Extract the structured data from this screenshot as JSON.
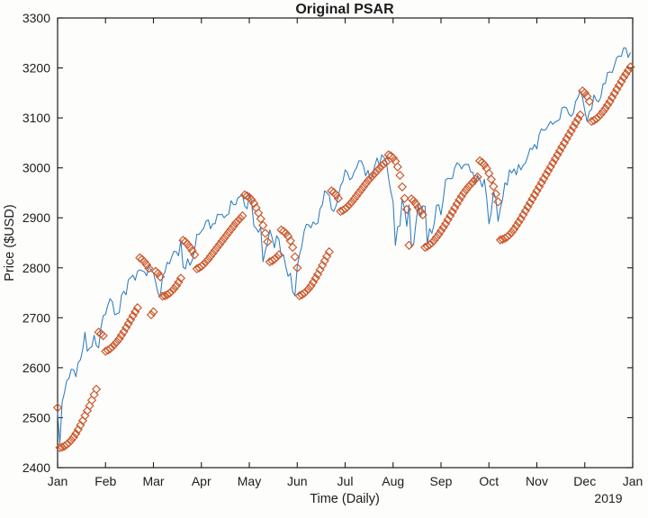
{
  "chart_data": {
    "type": "line+scatter",
    "title": "Original PSAR",
    "xlabel": "Time (Daily)",
    "ylabel": "Price ($USD)",
    "x_ticklabels": [
      "Jan",
      "Feb",
      "Mar",
      "Apr",
      "May",
      "Jun",
      "Jul",
      "Aug",
      "Sep",
      "Oct",
      "Nov",
      "Dec",
      "Jan"
    ],
    "x_secondary_label": "2019",
    "y_ticks": [
      2400,
      2500,
      2600,
      2700,
      2800,
      2900,
      3000,
      3100,
      3200,
      3300
    ],
    "ylim": [
      2400,
      3300
    ],
    "grid": false,
    "legend": "none",
    "axis_color": "#1c1c1c",
    "background": "#fdfdfc",
    "series": [
      {
        "name": "price",
        "type": "line",
        "color": "#2e7dbe",
        "values": [
          2510,
          2448,
          2532,
          2550,
          2574,
          2579,
          2597,
          2596,
          2582,
          2610,
          2616,
          2636,
          2671,
          2633,
          2639,
          2642,
          2665,
          2644,
          2640,
          2681,
          2704,
          2707,
          2725,
          2738,
          2732,
          2706,
          2708,
          2710,
          2745,
          2753,
          2746,
          2776,
          2780,
          2785,
          2775,
          2793,
          2796,
          2794,
          2792,
          2784,
          2804,
          2793,
          2790,
          2771,
          2749,
          2743,
          2783,
          2791,
          2811,
          2808,
          2822,
          2833,
          2832,
          2824,
          2855,
          2801,
          2798,
          2818,
          2805,
          2815,
          2834,
          2867,
          2867,
          2873,
          2879,
          2893,
          2896,
          2878,
          2888,
          2888,
          2907,
          2906,
          2907,
          2900,
          2905,
          2908,
          2934,
          2927,
          2926,
          2940,
          2943,
          2946,
          2924,
          2918,
          2946,
          2932,
          2884,
          2879,
          2871,
          2881,
          2812,
          2834,
          2851,
          2876,
          2860,
          2840,
          2864,
          2856,
          2822,
          2826,
          2802,
          2783,
          2789,
          2752,
          2744,
          2803,
          2826,
          2843,
          2873,
          2887,
          2886,
          2880,
          2892,
          2887,
          2889,
          2918,
          2926,
          2954,
          2950,
          2945,
          2917,
          2913,
          2924,
          2942,
          2964,
          2973,
          2996,
          2990,
          2976,
          2980,
          2993,
          3000,
          3014,
          3014,
          3004,
          2984,
          2995,
          2977,
          2985,
          3005,
          3020,
          3004,
          3026,
          3021,
          3013,
          2980,
          2953,
          2932,
          2845,
          2882,
          2884,
          2938,
          2919,
          2883,
          2926,
          2841,
          2847,
          2889,
          2924,
          2901,
          2924,
          2923,
          2847,
          2878,
          2869,
          2888,
          2925,
          2926,
          2906,
          2938,
          2976,
          2979,
          2978,
          2979,
          3000,
          3010,
          3007,
          2998,
          3006,
          3007,
          3007,
          2992,
          2991,
          2967,
          2985,
          2977,
          2962,
          2977,
          2940,
          2888,
          2911,
          2952,
          2939,
          2893,
          2919,
          2938,
          2970,
          2966,
          2996,
          2990,
          2998,
          2986,
          3007,
          2996,
          3005,
          3010,
          3023,
          3039,
          3037,
          3047,
          3038,
          3067,
          3078,
          3075,
          3077,
          3085,
          3093,
          3087,
          3092,
          3094,
          3097,
          3120,
          3122,
          3120,
          3108,
          3103,
          3110,
          3133,
          3141,
          3154,
          3141,
          3114,
          3093,
          3113,
          3117,
          3146,
          3136,
          3132,
          3141,
          3168,
          3169,
          3191,
          3192,
          3191,
          3205,
          3221,
          3224,
          3223,
          3240,
          3240,
          3221,
          3231
        ]
      },
      {
        "name": "psar",
        "type": "scatter",
        "marker": "diamond",
        "color": "#cc5a2e",
        "values": [
          2520,
          2440,
          2441,
          2443,
          2446,
          2450,
          2455,
          2461,
          2468,
          2476,
          2485,
          2494,
          2504,
          2514,
          2524,
          2535,
          2546,
          2557,
          2671,
          2668,
          2664,
          2633,
          2635,
          2638,
          2642,
          2647,
          2652,
          2658,
          2665,
          2672,
          2680,
          2688,
          2696,
          2704,
          2712,
          2720,
          2820,
          2817,
          2812,
          2806,
          2799,
          2706,
          2712,
          2793,
          2789,
          2782,
          2743,
          2744,
          2746,
          2749,
          2753,
          2758,
          2764,
          2771,
          2779,
          2855,
          2852,
          2847,
          2841,
          2834,
          2826,
          2798,
          2800,
          2803,
          2807,
          2812,
          2817,
          2823,
          2829,
          2835,
          2841,
          2847,
          2853,
          2859,
          2865,
          2871,
          2877,
          2883,
          2889,
          2894,
          2899,
          2904,
          2946,
          2944,
          2941,
          2936,
          2929,
          2920,
          2910,
          2898,
          2885,
          2869,
          2852,
          2812,
          2814,
          2817,
          2821,
          2826,
          2876,
          2873,
          2869,
          2863,
          2854,
          2841,
          2822,
          2800,
          2744,
          2746,
          2749,
          2753,
          2758,
          2764,
          2771,
          2779,
          2787,
          2796,
          2805,
          2814,
          2823,
          2832,
          2954,
          2951,
          2946,
          2939,
          2913,
          2915,
          2918,
          2922,
          2927,
          2932,
          2938,
          2944,
          2950,
          2956,
          2962,
          2968,
          2974,
          2979,
          2984,
          2989,
          2994,
          2999,
          3004,
          3008,
          3012,
          3026,
          3024,
          3020,
          3013,
          3002,
          2985,
          2962,
          2939,
          2917,
          2845,
          2938,
          2934,
          2928,
          2921,
          2913,
          2906,
          2841,
          2843,
          2846,
          2850,
          2855,
          2861,
          2867,
          2874,
          2881,
          2888,
          2896,
          2904,
          2912,
          2920,
          2928,
          2936,
          2943,
          2950,
          2956,
          2962,
          2967,
          2972,
          2977,
          2982,
          3014,
          3011,
          3006,
          2999,
          2989,
          2977,
          2963,
          2948,
          2932,
          2856,
          2857,
          2859,
          2862,
          2866,
          2871,
          2877,
          2884,
          2891,
          2898,
          2906,
          2914,
          2922,
          2930,
          2938,
          2946,
          2954,
          2962,
          2970,
          2978,
          2986,
          2994,
          3002,
          3010,
          3018,
          3026,
          3034,
          3042,
          3050,
          3058,
          3066,
          3074,
          3082,
          3090,
          3098,
          3106,
          3154,
          3150,
          3143,
          3133,
          3093,
          3095,
          3098,
          3102,
          3107,
          3113,
          3119,
          3126,
          3133,
          3141,
          3149,
          3157,
          3165,
          3173,
          3181,
          3188,
          3195,
          3202
        ]
      }
    ]
  }
}
